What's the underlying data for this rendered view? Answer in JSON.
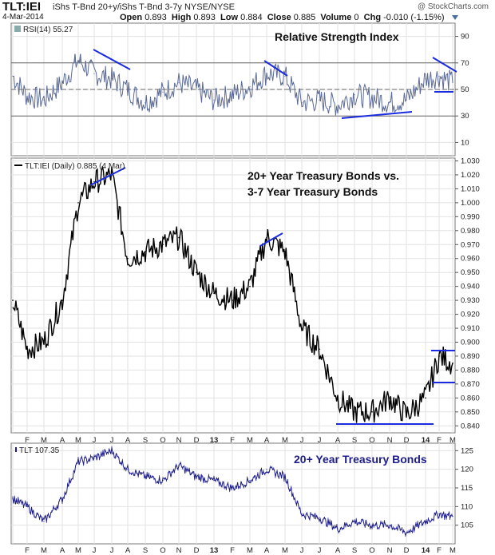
{
  "header": {
    "symbol": "TLT:IEI",
    "description": "iShs T-Bnd 20+y/iShs T-Bnd 3-7y  NYSE/NYSE",
    "brand": "@ StockCharts.com",
    "date": "4-Mar-2014",
    "open_label": "Open",
    "open": "0.893",
    "high_label": "High",
    "high": "0.893",
    "low_label": "Low",
    "low": "0.884",
    "close_label": "Close",
    "close": "0.885",
    "volume_label": "Volume",
    "volume": "0",
    "chg_label": "Chg",
    "chg": "-0.010 (-1.15%)"
  },
  "chart_data": [
    {
      "type": "line",
      "panel": "rsi",
      "legend": "RSI(14) 55.27",
      "title": "Relative Strength Index",
      "ylim": [
        0,
        100
      ],
      "yticks": [
        10,
        30,
        50,
        70,
        90
      ],
      "reference_lines": [
        30,
        50,
        70
      ],
      "x": [
        "2012-01",
        "2012-02",
        "2012-03",
        "2012-04",
        "2012-05",
        "2012-06",
        "2012-07",
        "2012-08",
        "2012-09",
        "2012-10",
        "2012-11",
        "2012-12",
        "2013-01",
        "2013-02",
        "2013-03",
        "2013-04",
        "2013-05",
        "2013-06",
        "2013-07",
        "2013-08",
        "2013-09",
        "2013-10",
        "2013-11",
        "2013-12",
        "2014-01",
        "2014-02",
        "2014-03"
      ],
      "values": [
        60,
        45,
        42,
        55,
        72,
        62,
        58,
        50,
        40,
        48,
        55,
        50,
        42,
        46,
        52,
        62,
        60,
        40,
        42,
        38,
        46,
        44,
        40,
        42,
        58,
        60,
        55.27
      ],
      "colors": {
        "line": "#5b6a96",
        "overbought_fill": "#7f8f9a",
        "annotation": "#1a2be0"
      }
    },
    {
      "type": "line",
      "panel": "ratio",
      "legend": "TLT:IEI (Daily) 0.885 (4 Mar)",
      "title": "20+ Year Treasury Bonds vs.",
      "subtitle": "3-7 Year Treasury Bonds",
      "ylim": [
        0.835,
        1.032
      ],
      "yticks": [
        0.84,
        0.85,
        0.86,
        0.87,
        0.88,
        0.89,
        0.9,
        0.91,
        0.92,
        0.93,
        0.94,
        0.95,
        0.96,
        0.97,
        0.98,
        0.99,
        1.0,
        1.01,
        1.02,
        1.03
      ],
      "ytick_labels": [
        "0.840",
        "0.850",
        "0.860",
        "0.870",
        "0.880",
        "0.890",
        "0.900",
        "0.910",
        "0.920",
        "0.930",
        "0.940",
        "0.950",
        "0.960",
        "0.970",
        "0.980",
        "0.990",
        "1.000",
        "1.010",
        "1.020",
        "1.030"
      ],
      "x": [
        "2012-01",
        "2012-02",
        "2012-03",
        "2012-04",
        "2012-05",
        "2012-06",
        "2012-07",
        "2012-08",
        "2012-09",
        "2012-10",
        "2012-11",
        "2012-12",
        "2013-01",
        "2013-02",
        "2013-03",
        "2013-04",
        "2013-05",
        "2013-06",
        "2013-07",
        "2013-08",
        "2013-09",
        "2013-10",
        "2013-11",
        "2013-12",
        "2014-01",
        "2014-02",
        "2014-03"
      ],
      "values": [
        0.93,
        0.895,
        0.9,
        0.93,
        1.0,
        1.015,
        1.02,
        0.96,
        0.965,
        0.97,
        0.975,
        0.95,
        0.935,
        0.93,
        0.94,
        0.975,
        0.965,
        0.91,
        0.895,
        0.86,
        0.85,
        0.85,
        0.86,
        0.848,
        0.86,
        0.89,
        0.885
      ],
      "colors": {
        "line": "#000000",
        "annotation": "#1a2be0"
      }
    },
    {
      "type": "line",
      "panel": "tlt",
      "legend": "TLT 107.35",
      "title": "20+ Year Treasury Bonds",
      "ylim": [
        100,
        127
      ],
      "yticks": [
        105,
        110,
        115,
        120,
        125
      ],
      "ytick_labels": [
        "105",
        "110",
        "115",
        "120",
        "125"
      ],
      "x": [
        "2012-01",
        "2012-02",
        "2012-03",
        "2012-04",
        "2012-05",
        "2012-06",
        "2012-07",
        "2012-08",
        "2012-09",
        "2012-10",
        "2012-11",
        "2012-12",
        "2013-01",
        "2013-02",
        "2013-03",
        "2013-04",
        "2013-05",
        "2013-06",
        "2013-07",
        "2013-08",
        "2013-09",
        "2013-10",
        "2013-11",
        "2013-12",
        "2014-01",
        "2014-02",
        "2014-03"
      ],
      "values": [
        112,
        110,
        106,
        112,
        122,
        123,
        125,
        120,
        118,
        117,
        121,
        118,
        117,
        115,
        117,
        120,
        118,
        108,
        107,
        104,
        106,
        105,
        105,
        103,
        106,
        108,
        107.35
      ],
      "colors": {
        "line": "#1c1c8c"
      }
    }
  ],
  "x_axis_labels": [
    "F",
    "M",
    "A",
    "M",
    "J",
    "J",
    "A",
    "S",
    "O",
    "N",
    "D",
    "13",
    "F",
    "M",
    "A",
    "M",
    "J",
    "J",
    "A",
    "S",
    "O",
    "N",
    "D",
    "14",
    "F",
    "M"
  ]
}
